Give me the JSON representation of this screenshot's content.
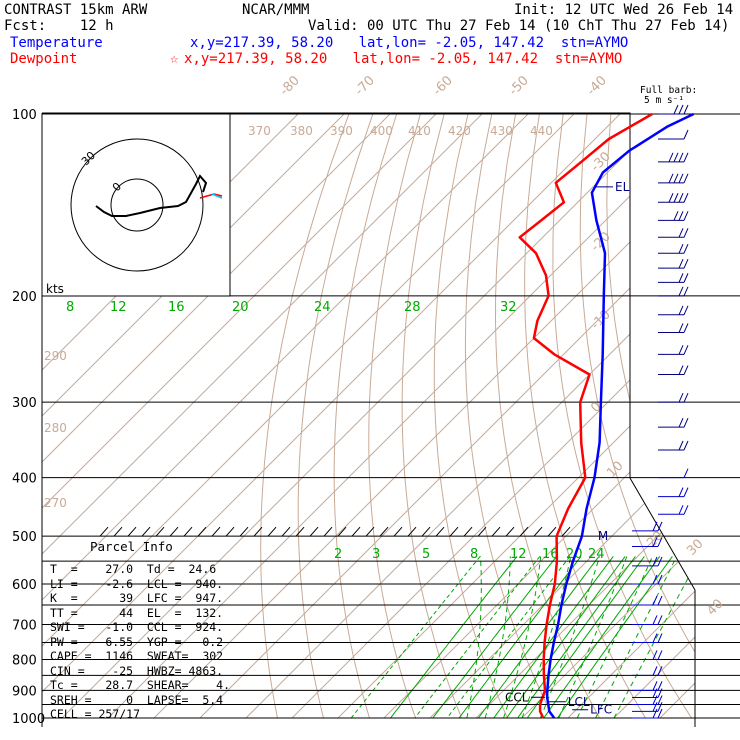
{
  "header": {
    "model": "CONTRAST 15km ARW",
    "source": "NCAR/MMM",
    "init": "Init: 12 UTC Wed 26 Feb 14",
    "fcst": "Fcst:    12 h",
    "valid": "Valid: 00 UTC Thu 27 Feb 14 (10 ChT Thu 27 Feb 14)",
    "temperature_label": "Temperature",
    "temperature_info": "x,y=217.39, 58.20   lat,lon= -2.05, 147.42  stn=AYMO",
    "dewpoint_label": "Dewpoint",
    "dewpoint_info": "x,y=217.39, 58.20   lat,lon= -2.05, 147.42  stn=AYMO",
    "dewpoint_marker": "☆",
    "full_barb_label": "Full barb:",
    "full_barb_units": "5 m s⁻¹"
  },
  "parcel_info": {
    "title": "Parcel Info",
    "lines": [
      "T  =    27.0  Td =  24.6",
      "LI =    -2.6  LCL =  940.",
      "K  =      39  LFC =  947.",
      "TT =      44  EL  =  132.",
      "SWI =   -1.0  CCL =  924.",
      "PW =    6.55  YGP =   0.2",
      "CAPE =  1146  SWEAT=  302",
      "CIN =    -25  HWBZ= 4863.",
      "Tc =    28.7  SHEAR=    4.",
      "SREH =     0  LAPSE=  5.4",
      "CELL = 257/17"
    ]
  },
  "colors": {
    "temperature": "#0000ff",
    "dewpoint": "#ff0000",
    "isotherm": "#c8aa96",
    "mixing_ratio": "#00aa00",
    "isobar": "#000000",
    "wind_barb": "#000080"
  },
  "chart_data": {
    "type": "skew-t",
    "pressure_levels": [
      100,
      200,
      300,
      400,
      500,
      600,
      700,
      800,
      900,
      1000
    ],
    "temperature_profile": {
      "name": "Temperature",
      "p": [
        1000,
        975,
        950,
        925,
        900,
        850,
        800,
        750,
        700,
        650,
        600,
        550,
        500,
        450,
        400,
        350,
        300,
        250,
        200,
        170,
        150,
        135,
        125,
        115,
        105,
        100
      ],
      "t": [
        27.0,
        24.5,
        22.8,
        21.0,
        19.5,
        16.5,
        13.5,
        10.5,
        7.5,
        4.0,
        0.5,
        -3.0,
        -6.5,
        -11.5,
        -16.5,
        -23.0,
        -31.5,
        -41.5,
        -54.0,
        -63.0,
        -72.0,
        -79.0,
        -81.0,
        -80.0,
        -77.0,
        -74.0
      ]
    },
    "dewpoint_profile": {
      "name": "Dewpoint",
      "p": [
        1000,
        975,
        950,
        925,
        900,
        850,
        800,
        750,
        700,
        650,
        600,
        550,
        500,
        450,
        400,
        350,
        300,
        270,
        250,
        235,
        220,
        200,
        185,
        170,
        160,
        150,
        140,
        130,
        120,
        110,
        100
      ],
      "t": [
        24.6,
        22.5,
        21.0,
        20.0,
        19.0,
        15.5,
        12.0,
        8.5,
        5.0,
        1.5,
        -2.0,
        -6.5,
        -12.0,
        -15.5,
        -18.5,
        -27.0,
        -36.0,
        -40.0,
        -52.0,
        -60.0,
        -63.0,
        -66.0,
        -71.0,
        -78.0,
        -85.0,
        -84.0,
        -83.0,
        -89.0,
        -88.0,
        -87.0,
        -83.0
      ]
    },
    "isobars_labeled": [
      100,
      200,
      300,
      400,
      500,
      600,
      700,
      800,
      900,
      1000
    ],
    "isotherm_labels": [
      -80,
      -70,
      -60,
      -50,
      -40,
      -30,
      -20,
      -10,
      0,
      10,
      20,
      30,
      40
    ],
    "dry_adiabat_labels": [
      370,
      380,
      390,
      400,
      410,
      420,
      430,
      440,
      290,
      280,
      270
    ],
    "mixing_ratio_upper": [
      8,
      12,
      16,
      20,
      24,
      28,
      32
    ],
    "mixing_ratio_lower": [
      2,
      3,
      5,
      8,
      12,
      16,
      20,
      24
    ],
    "levels": {
      "EL": {
        "label": "EL",
        "p": 132
      },
      "CCL": {
        "label": "CCL",
        "p": 924
      },
      "LCL": {
        "label": "LCL",
        "p": 940
      },
      "LFC": {
        "label": "LFC",
        "p": 947
      },
      "M": {
        "label": "M",
        "p": 500
      }
    },
    "hodograph": {
      "speed_label": "kts",
      "ring_labels": [
        "30",
        "0"
      ]
    },
    "wind_barbs": {
      "p": [
        100,
        110,
        120,
        130,
        140,
        150,
        160,
        170,
        180,
        190,
        200,
        215,
        230,
        250,
        270,
        300,
        330,
        360,
        400,
        430,
        460,
        490,
        520,
        560,
        600,
        650,
        700,
        750,
        800,
        850,
        900,
        925,
        950,
        975,
        1000
      ],
      "speed_ms": [
        15,
        5,
        20,
        20,
        20,
        15,
        10,
        10,
        10,
        10,
        10,
        10,
        10,
        10,
        10,
        10,
        10,
        10,
        5,
        10,
        10,
        10,
        10,
        10,
        10,
        10,
        10,
        10,
        10,
        10,
        10,
        10,
        10,
        10,
        10
      ]
    }
  }
}
